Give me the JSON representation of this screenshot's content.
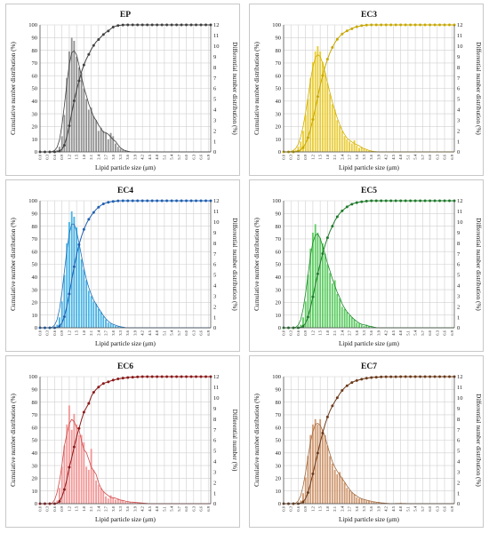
{
  "chart_data": [
    {
      "type": "bar",
      "title": "EP",
      "color": "#808080",
      "curve_color": "#404040",
      "dot_color": "#404040",
      "xlabel": "Lipid particle size (μm)",
      "ylabel": "Cumulative number distribution (%)",
      "y2label": "Differential number distribution (%)",
      "ylim": [
        0,
        100
      ],
      "y2lim": [
        0,
        12
      ],
      "x": [
        0.0,
        0.1,
        0.2,
        0.3,
        0.4,
        0.5,
        0.6,
        0.7,
        0.8,
        0.9,
        1.0,
        1.1,
        1.2,
        1.3,
        1.4,
        1.5,
        1.6,
        1.7,
        1.8,
        1.9,
        2.0,
        2.1,
        2.2,
        2.3,
        2.4,
        2.5,
        2.6,
        2.7,
        2.8,
        2.9,
        3.0,
        3.1,
        3.2,
        3.3,
        3.4,
        3.5,
        3.6,
        3.7,
        3.8,
        3.9,
        4.0,
        4.1,
        4.2,
        4.3,
        4.4,
        4.5,
        4.6,
        4.7,
        4.8,
        4.9,
        5.0,
        5.1,
        5.2,
        5.3,
        5.4,
        5.5,
        5.6,
        5.7,
        5.8,
        5.9,
        6.0,
        6.1,
        6.2,
        6.3,
        6.4,
        6.5,
        6.6,
        6.7,
        6.8,
        6.9,
        7.0
      ],
      "differential": [
        0,
        0,
        0,
        0,
        0,
        0,
        0,
        0.2,
        0.5,
        1.5,
        3.5,
        7,
        9.5,
        10.8,
        10.5,
        9,
        8,
        7.5,
        6,
        5,
        4,
        4.2,
        3.4,
        3,
        2,
        2.3,
        2,
        1.8,
        1.2,
        1.8,
        1.5,
        0.8,
        0.5,
        0.3,
        0.2,
        0.1,
        0,
        0,
        0,
        0,
        0,
        0,
        0,
        0,
        0,
        0,
        0,
        0,
        0,
        0,
        0,
        0,
        0,
        0,
        0,
        0,
        0,
        0,
        0,
        0,
        0,
        0,
        0,
        0,
        0,
        0,
        0,
        0,
        0,
        0,
        0
      ]
    },
    {
      "type": "bar",
      "title": "EC3",
      "color": "#E6C619",
      "curve_color": "#D2AE00",
      "dot_color": "#C8A800",
      "xlabel": "Lipid particle size (μm)",
      "ylabel": "Cumulative number distribution (%)",
      "y2label": "Differential number distribution (%)",
      "ylim": [
        0,
        100
      ],
      "y2lim": [
        0,
        12
      ],
      "x": [
        0.0,
        0.1,
        0.2,
        0.3,
        0.4,
        0.5,
        0.6,
        0.7,
        0.8,
        0.9,
        1.0,
        1.1,
        1.2,
        1.3,
        1.4,
        1.5,
        1.6,
        1.7,
        1.8,
        1.9,
        2.0,
        2.1,
        2.2,
        2.3,
        2.4,
        2.5,
        2.6,
        2.7,
        2.8,
        2.9,
        3.0,
        3.1,
        3.2,
        3.3,
        3.4,
        3.5,
        3.6,
        3.7,
        3.8,
        3.9,
        4.0,
        4.1,
        4.2,
        4.3,
        4.4,
        4.5,
        4.6,
        4.7,
        4.8,
        4.9,
        5.0,
        5.1,
        5.2,
        5.3,
        5.4,
        5.5,
        5.6,
        5.7,
        5.8,
        5.9,
        6.0,
        6.1,
        6.2,
        6.3,
        6.4,
        6.5,
        6.6,
        6.7,
        6.8,
        6.9,
        7.0
      ],
      "differential": [
        0,
        0,
        0,
        0,
        0,
        0.2,
        0.5,
        1,
        2,
        3.5,
        5,
        7,
        8.5,
        9.5,
        10,
        9.5,
        8.5,
        7.5,
        6.5,
        5.5,
        4.5,
        4,
        3,
        2.5,
        2,
        1.5,
        1.2,
        1,
        0.8,
        1.1,
        0.6,
        0.4,
        0.5,
        0.3,
        0.2,
        0.1,
        0.1,
        0,
        0,
        0,
        0,
        0,
        0,
        0,
        0,
        0,
        0,
        0,
        0,
        0,
        0,
        0,
        0,
        0,
        0,
        0,
        0,
        0,
        0,
        0,
        0,
        0,
        0,
        0,
        0,
        0,
        0,
        0,
        0,
        0,
        0
      ]
    },
    {
      "type": "bar",
      "title": "EC4",
      "color": "#2AA7E0",
      "curve_color": "#1F6FB8",
      "dot_color": "#1F5FB0",
      "xlabel": "Lipid particle size (μm)",
      "ylabel": "Cumulative number distribution (%)",
      "y2label": "Differential number distribution (%)",
      "ylim": [
        0,
        100
      ],
      "y2lim": [
        0,
        12
      ],
      "x": [
        0.0,
        0.1,
        0.2,
        0.3,
        0.4,
        0.5,
        0.6,
        0.7,
        0.8,
        0.9,
        1.0,
        1.1,
        1.2,
        1.3,
        1.4,
        1.5,
        1.6,
        1.7,
        1.8,
        1.9,
        2.0,
        2.1,
        2.2,
        2.3,
        2.4,
        2.5,
        2.6,
        2.7,
        2.8,
        2.9,
        3.0,
        3.1,
        3.2,
        3.3,
        3.4,
        3.5,
        3.6,
        3.7,
        3.8,
        3.9,
        4.0,
        4.1,
        4.2,
        4.3,
        4.4,
        4.5,
        4.6,
        4.7,
        4.8,
        4.9,
        5.0,
        5.1,
        5.2,
        5.3,
        5.4,
        5.5,
        5.6,
        5.7,
        5.8,
        5.9,
        6.0,
        6.1,
        6.2,
        6.3,
        6.4,
        6.5,
        6.6,
        6.7,
        6.8,
        6.9,
        7.0
      ],
      "differential": [
        0,
        0,
        0,
        0,
        0,
        0,
        0,
        0.3,
        1,
        2.5,
        5,
        8,
        10,
        11,
        10.5,
        9.5,
        8,
        6.5,
        5.5,
        4.5,
        3.5,
        3,
        2.5,
        2.3,
        1.8,
        1.5,
        1.1,
        0.8,
        0.5,
        0.4,
        0.3,
        0.2,
        0.2,
        0.1,
        0,
        0,
        0,
        0,
        0,
        0,
        0,
        0,
        0,
        0,
        0,
        0,
        0,
        0,
        0,
        0,
        0,
        0,
        0,
        0,
        0,
        0,
        0,
        0,
        0,
        0,
        0,
        0,
        0,
        0,
        0,
        0,
        0,
        0,
        0,
        0,
        0
      ]
    },
    {
      "type": "bar",
      "title": "EC5",
      "color": "#44C44A",
      "curve_color": "#1E8A2A",
      "dot_color": "#1E7A2A",
      "xlabel": "Lipid particle size (μm)",
      "ylabel": "Cumulative number distribution (%)",
      "y2label": "Differential number distribution (%)",
      "ylim": [
        0,
        100
      ],
      "y2lim": [
        0,
        12
      ],
      "x": [
        0.0,
        0.1,
        0.2,
        0.3,
        0.4,
        0.5,
        0.6,
        0.7,
        0.8,
        0.9,
        1.0,
        1.1,
        1.2,
        1.3,
        1.4,
        1.5,
        1.6,
        1.7,
        1.8,
        1.9,
        2.0,
        2.1,
        2.2,
        2.3,
        2.4,
        2.5,
        2.6,
        2.7,
        2.8,
        2.9,
        3.0,
        3.1,
        3.2,
        3.3,
        3.4,
        3.5,
        3.6,
        3.7,
        3.8,
        3.9,
        4.0,
        4.1,
        4.2,
        4.3,
        4.4,
        4.5,
        4.6,
        4.7,
        4.8,
        4.9,
        5.0,
        5.1,
        5.2,
        5.3,
        5.4,
        5.5,
        5.6,
        5.7,
        5.8,
        5.9,
        6.0,
        6.1,
        6.2,
        6.3,
        6.4,
        6.5,
        6.6,
        6.7,
        6.8,
        6.9,
        7.0
      ],
      "differential": [
        0,
        0,
        0,
        0,
        0,
        0,
        0,
        0.3,
        1,
        2.5,
        5,
        7.5,
        9,
        9.8,
        9,
        8.5,
        8,
        7,
        6,
        5.2,
        4.2,
        4.5,
        3.2,
        2.8,
        2,
        1.8,
        1.5,
        1.2,
        1,
        0.8,
        0.5,
        0.4,
        0.3,
        0.2,
        0.3,
        0.2,
        0.1,
        0,
        0,
        0,
        0,
        0,
        0,
        0,
        0,
        0,
        0,
        0,
        0,
        0,
        0,
        0,
        0,
        0,
        0,
        0,
        0,
        0,
        0,
        0,
        0,
        0,
        0,
        0,
        0,
        0,
        0,
        0,
        0,
        0,
        0
      ]
    },
    {
      "type": "bar",
      "title": "EC6",
      "color": "#F08A8A",
      "curve_color": "#D04A4A",
      "dot_color": "#8B1A1A",
      "xlabel": "Lipid particle size (μm)",
      "ylabel": "Cumulative number distribution (%)",
      "y2label": "Differential number (%)",
      "ylim": [
        0,
        100
      ],
      "y2lim": [
        0,
        12
      ],
      "x": [
        0.0,
        0.1,
        0.2,
        0.3,
        0.4,
        0.5,
        0.6,
        0.7,
        0.8,
        0.9,
        1.0,
        1.1,
        1.2,
        1.3,
        1.4,
        1.5,
        1.6,
        1.7,
        1.8,
        1.9,
        2.0,
        2.1,
        2.2,
        2.3,
        2.4,
        2.5,
        2.6,
        2.7,
        2.8,
        2.9,
        3.0,
        3.1,
        3.2,
        3.3,
        3.4,
        3.5,
        3.6,
        3.7,
        3.8,
        3.9,
        4.0,
        4.1,
        4.2,
        4.3,
        4.4,
        4.5,
        4.6,
        4.7,
        4.8,
        4.9,
        5.0,
        5.1,
        5.2,
        5.3,
        5.4,
        5.5,
        5.6,
        5.7,
        5.8,
        5.9,
        6.0,
        6.1,
        6.2,
        6.3,
        6.4,
        6.5,
        6.6,
        6.7,
        6.8,
        6.9,
        7.0
      ],
      "differential": [
        0,
        0,
        0,
        0,
        0,
        0,
        0,
        0.3,
        1.5,
        3.5,
        5.5,
        7.5,
        9.3,
        7,
        8.5,
        7.5,
        6.5,
        6.5,
        5.8,
        3.5,
        3.2,
        5.2,
        3.2,
        2.2,
        1.8,
        1.5,
        1.2,
        0.7,
        0.5,
        0.8,
        0.6,
        0.4,
        0.5,
        0.3,
        0.3,
        0.2,
        0.2,
        0.2,
        0.1,
        0.1,
        0.1,
        0.1,
        0.1,
        0,
        0,
        0,
        0,
        0,
        0,
        0,
        0,
        0,
        0,
        0,
        0,
        0,
        0,
        0,
        0,
        0,
        0,
        0,
        0,
        0,
        0,
        0,
        0,
        0,
        0,
        0,
        0
      ]
    },
    {
      "type": "bar",
      "title": "EC7",
      "color": "#C8885A",
      "curve_color": "#A06A40",
      "dot_color": "#6B3A1A",
      "xlabel": "Lipid particle size (μm)",
      "ylabel": "Cumulative number distribution (%)",
      "y2label": "Differential number distribution (%)",
      "ylim": [
        0,
        100
      ],
      "y2lim": [
        0,
        12
      ],
      "x": [
        0.0,
        0.1,
        0.2,
        0.3,
        0.4,
        0.5,
        0.6,
        0.7,
        0.8,
        0.9,
        1.0,
        1.1,
        1.2,
        1.3,
        1.4,
        1.5,
        1.6,
        1.7,
        1.8,
        1.9,
        2.0,
        2.1,
        2.2,
        2.3,
        2.4,
        2.5,
        2.6,
        2.7,
        2.8,
        2.9,
        3.0,
        3.1,
        3.2,
        3.3,
        3.4,
        3.5,
        3.6,
        3.7,
        3.8,
        3.9,
        4.0,
        4.1,
        4.2,
        4.3,
        4.4,
        4.5,
        4.6,
        4.7,
        4.8,
        4.9,
        5.0,
        5.1,
        5.2,
        5.3,
        5.4,
        5.5,
        5.6,
        5.7,
        5.8,
        5.9,
        6.0,
        6.1,
        6.2,
        6.3,
        6.4,
        6.5,
        6.6,
        6.7,
        6.8,
        6.9,
        7.0
      ],
      "differential": [
        0,
        0,
        0,
        0,
        0,
        0,
        0,
        0.3,
        1,
        2.5,
        4.5,
        6.5,
        7.5,
        8,
        7.5,
        8,
        7,
        6.5,
        5.5,
        4.5,
        3.8,
        3.2,
        2.8,
        3,
        2.5,
        2,
        1.5,
        1.3,
        1.1,
        0.9,
        0.6,
        0.5,
        0.5,
        0.4,
        0.3,
        0.3,
        0.2,
        0.2,
        0.1,
        0.1,
        0.1,
        0.1,
        0,
        0,
        0,
        0,
        0,
        0,
        0.1,
        0,
        0,
        0,
        0,
        0,
        0,
        0,
        0,
        0,
        0,
        0,
        0,
        0,
        0,
        0,
        0,
        0,
        0,
        0,
        0,
        0,
        0
      ]
    }
  ]
}
